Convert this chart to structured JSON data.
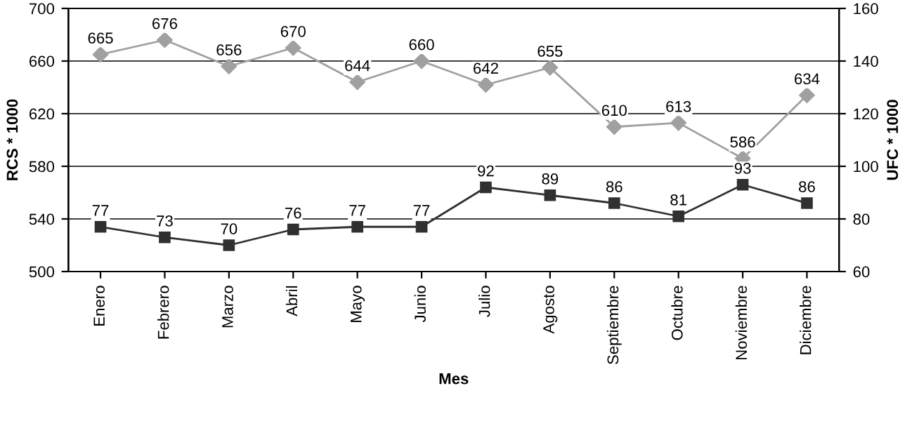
{
  "chart_data": {
    "type": "line",
    "xlabel": "Mes",
    "ylabel": "RCS * 1000",
    "y2label": "UFC * 1000",
    "categories": [
      "Enero",
      "Febrero",
      "Marzo",
      "Abril",
      "Mayo",
      "Junio",
      "Julio",
      "Agosto",
      "Septiembre",
      "Octubre",
      "Noviembre",
      "Diciembre"
    ],
    "series": [
      {
        "color": "#a0a0a0",
        "marker": "diamond",
        "values": [
          665,
          676,
          656,
          670,
          644,
          660,
          642,
          655,
          610,
          613,
          586,
          634
        ]
      },
      {
        "color": "#303030",
        "marker": "square",
        "axis": "y2",
        "values": [
          77,
          73,
          70,
          76,
          77,
          77,
          92,
          89,
          86,
          81,
          93,
          86
        ]
      }
    ],
    "ylim": [
      500,
      700
    ],
    "yticks": [
      500,
      540,
      580,
      620,
      660,
      700
    ],
    "y2lim": [
      60,
      160
    ],
    "y2ticks": [
      60,
      80,
      100,
      120,
      140,
      160
    ],
    "grid": "y",
    "data_labels": true,
    "line_style": "solid"
  }
}
